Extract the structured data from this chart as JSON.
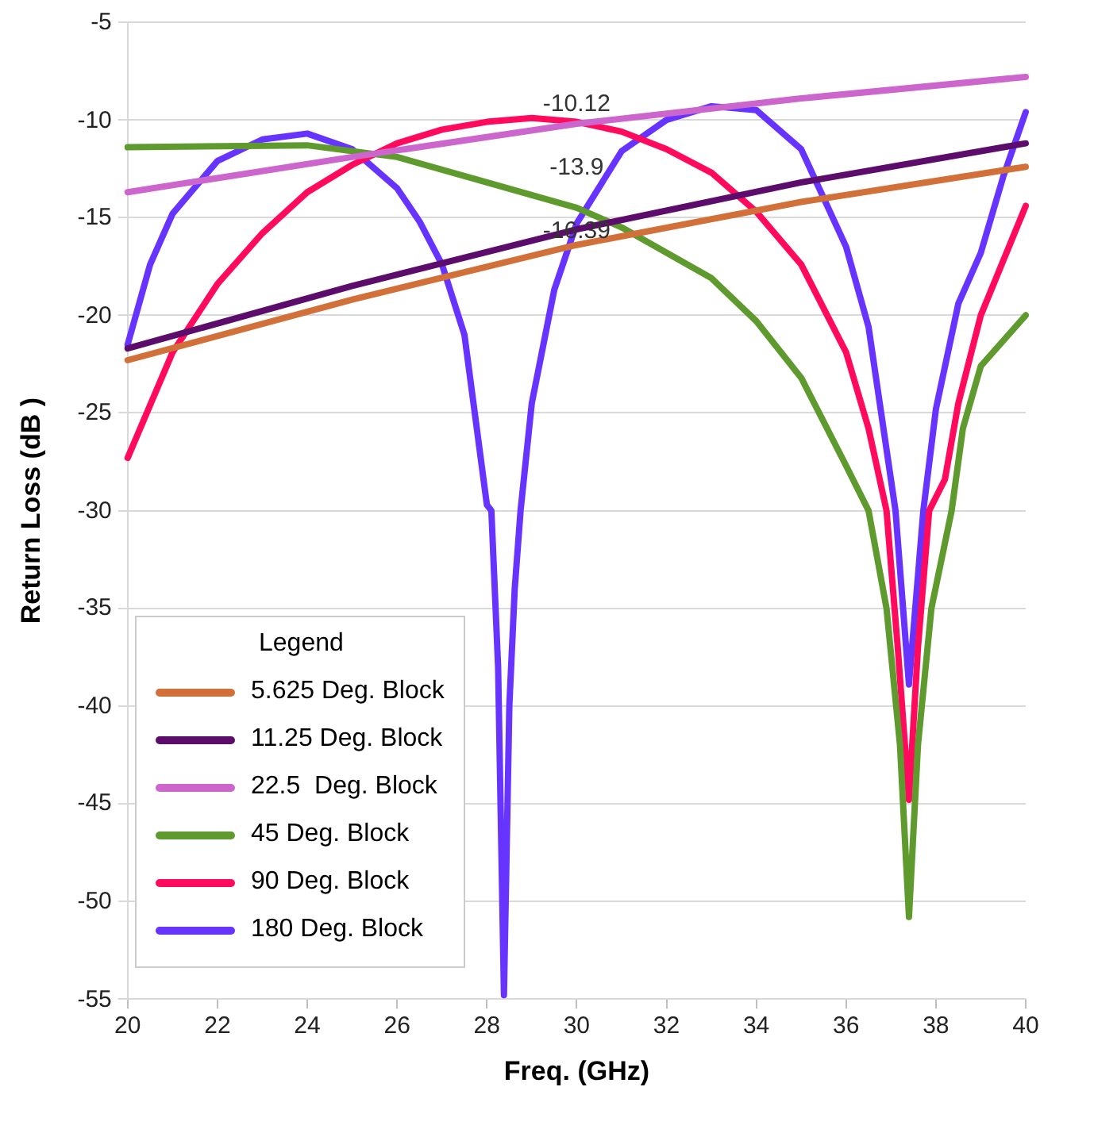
{
  "chart_data": {
    "type": "line",
    "xlabel": "Freq. (GHz)",
    "ylabel": "Return Loss (dB )",
    "legend_title": "Legend",
    "legend": "bottom left",
    "grid": "y",
    "marker": "none",
    "line_style": "solid",
    "xlim": [
      20,
      40
    ],
    "xticks": [
      20,
      22,
      24,
      26,
      28,
      30,
      32,
      34,
      36,
      38,
      40
    ],
    "ylim": [
      -55,
      -5
    ],
    "yticks": [
      -55,
      -50,
      -45,
      -40,
      -35,
      -30,
      -25,
      -20,
      -15,
      -10,
      -5
    ],
    "annotations": [
      "-10.12",
      "-13.9",
      "-16.39"
    ],
    "series": [
      {
        "name": "5.625 Deg. Block",
        "color": "#d2703a",
        "x": [
          20,
          25,
          30,
          35,
          40
        ],
        "values": [
          -22.3,
          -19.2,
          -16.4,
          -14.2,
          -12.4
        ]
      },
      {
        "name": "11.25 Deg. Block",
        "color": "#5c0c6a",
        "x": [
          20,
          25,
          30,
          35,
          40
        ],
        "values": [
          -21.7,
          -18.5,
          -15.6,
          -13.2,
          -11.2
        ]
      },
      {
        "name": "22.5  Deg. Block",
        "color": "#cc66cc",
        "x": [
          20,
          25,
          30,
          35,
          40
        ],
        "values": [
          -13.7,
          -11.9,
          -10.2,
          -8.9,
          -7.8
        ]
      },
      {
        "name": "45 Deg. Block",
        "color": "#5f9a2e",
        "x": [
          20,
          24,
          26,
          28,
          30,
          31,
          32,
          33,
          34,
          35,
          36,
          36.5,
          36.9,
          37.2,
          37.4,
          37.6,
          37.9,
          38.35,
          38.6,
          39,
          40
        ],
        "values": [
          -11.4,
          -11.3,
          -11.9,
          -13.2,
          -14.5,
          -15.5,
          -16.8,
          -18.1,
          -20.3,
          -23.2,
          -27.7,
          -30,
          -35,
          -42,
          -50.8,
          -42,
          -35,
          -30,
          -25.8,
          -22.6,
          -20
        ]
      },
      {
        "name": "90 Deg. Block",
        "color": "#ff0a5c",
        "x": [
          20,
          21,
          22,
          23,
          24,
          25,
          26,
          27,
          28,
          29,
          30,
          31,
          32,
          33,
          34,
          35,
          36,
          36.5,
          36.9,
          37.15,
          37.4,
          37.6,
          37.85,
          38.2,
          38.5,
          39,
          40
        ],
        "values": [
          -27.3,
          -21.9,
          -18.4,
          -15.8,
          -13.7,
          -12.3,
          -11.2,
          -10.5,
          -10.1,
          -9.9,
          -10.1,
          -10.6,
          -11.5,
          -12.7,
          -14.7,
          -17.4,
          -21.9,
          -25.8,
          -30,
          -37,
          -44.8,
          -37,
          -30,
          -28.4,
          -24.5,
          -20,
          -14.4
        ]
      },
      {
        "name": "180 Deg. Block",
        "color": "#6633ff",
        "x": [
          20,
          20.5,
          21,
          22,
          23,
          24,
          25,
          26,
          26.5,
          27,
          27.5,
          28,
          28.1,
          28.25,
          28.38,
          28.5,
          28.62,
          28.75,
          29,
          29.5,
          30,
          31,
          32,
          33,
          34,
          35,
          36,
          36.5,
          37.1,
          37.4,
          37.72,
          38,
          38.5,
          39,
          39.5,
          40
        ],
        "values": [
          -21.5,
          -17.4,
          -14.8,
          -12.1,
          -11,
          -10.7,
          -11.5,
          -13.5,
          -15.2,
          -17.4,
          -21,
          -29.7,
          -30,
          -38,
          -54.8,
          -40,
          -34,
          -30,
          -24.5,
          -18.7,
          -15.3,
          -11.6,
          -10,
          -9.3,
          -9.5,
          -11.5,
          -16.5,
          -20.6,
          -30,
          -38.9,
          -30,
          -24.8,
          -19.4,
          -16.8,
          -12.9,
          -9.6
        ]
      }
    ]
  }
}
